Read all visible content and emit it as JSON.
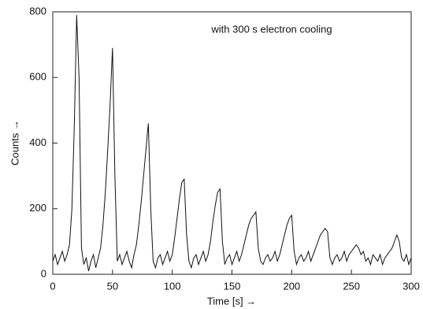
{
  "chart_data": {
    "type": "line",
    "annotation": "with 300 s electron cooling",
    "xlabel": "Time [s] →",
    "ylabel": "Counts →",
    "color": "#111111",
    "x": [
      0,
      2,
      4,
      6,
      8,
      10,
      12,
      14,
      16,
      18,
      20,
      22,
      24,
      26,
      28,
      30,
      32,
      34,
      36,
      38,
      40,
      42,
      44,
      46,
      48,
      50,
      52,
      54,
      56,
      58,
      60,
      62,
      64,
      66,
      68,
      70,
      72,
      74,
      76,
      78,
      80,
      82,
      84,
      86,
      88,
      90,
      92,
      94,
      96,
      98,
      100,
      102,
      104,
      106,
      108,
      110,
      112,
      114,
      116,
      118,
      120,
      122,
      124,
      126,
      128,
      130,
      132,
      134,
      136,
      138,
      140,
      142,
      144,
      146,
      148,
      150,
      152,
      154,
      156,
      158,
      160,
      162,
      164,
      166,
      168,
      170,
      172,
      174,
      176,
      178,
      180,
      182,
      184,
      186,
      188,
      190,
      192,
      194,
      196,
      198,
      200,
      202,
      204,
      206,
      208,
      210,
      212,
      214,
      216,
      218,
      220,
      222,
      224,
      226,
      228,
      230,
      232,
      234,
      236,
      238,
      240,
      242,
      244,
      246,
      248,
      250,
      252,
      254,
      256,
      258,
      260,
      262,
      264,
      266,
      268,
      270,
      272,
      274,
      276,
      278,
      280,
      282,
      284,
      286,
      288,
      290,
      292,
      294,
      296,
      298,
      300
    ],
    "values": [
      40,
      60,
      30,
      50,
      70,
      40,
      60,
      90,
      200,
      450,
      790,
      600,
      80,
      30,
      50,
      10,
      40,
      60,
      20,
      50,
      80,
      150,
      250,
      380,
      520,
      690,
      300,
      40,
      60,
      30,
      50,
      70,
      40,
      20,
      60,
      90,
      150,
      220,
      300,
      380,
      460,
      200,
      40,
      20,
      50,
      60,
      30,
      50,
      70,
      40,
      60,
      110,
      170,
      230,
      280,
      290,
      120,
      40,
      20,
      50,
      60,
      30,
      50,
      70,
      40,
      60,
      100,
      160,
      210,
      250,
      260,
      100,
      30,
      50,
      60,
      30,
      50,
      70,
      40,
      60,
      90,
      120,
      150,
      170,
      180,
      190,
      80,
      40,
      30,
      50,
      60,
      40,
      50,
      70,
      40,
      60,
      90,
      120,
      150,
      170,
      180,
      70,
      30,
      50,
      60,
      40,
      50,
      70,
      40,
      60,
      80,
      100,
      120,
      130,
      140,
      130,
      50,
      30,
      50,
      60,
      40,
      50,
      70,
      40,
      60,
      70,
      80,
      90,
      80,
      60,
      70,
      40,
      50,
      30,
      60,
      50,
      40,
      60,
      30,
      50,
      60,
      70,
      80,
      100,
      120,
      100,
      50,
      40,
      60,
      30,
      50
    ],
    "xlim": [
      0,
      300
    ],
    "xticks": [
      0,
      50,
      100,
      150,
      200,
      250,
      300
    ],
    "ylim": [
      0,
      800
    ],
    "yticks": [
      0,
      200,
      400,
      600,
      800
    ]
  }
}
